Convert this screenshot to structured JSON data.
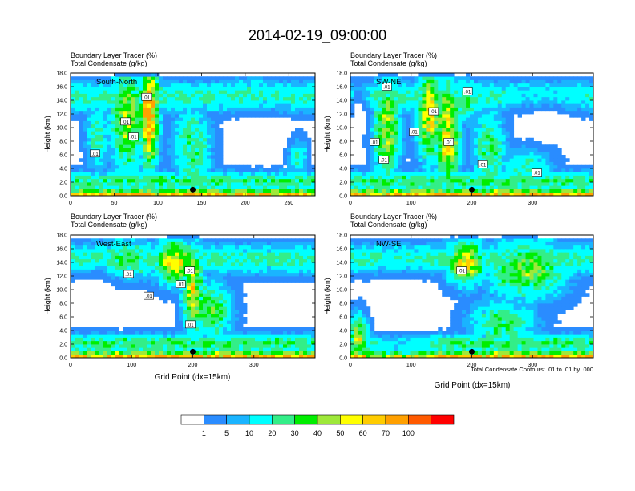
{
  "figure": {
    "title": "2014-02-19_09:00:00",
    "footnote": "Total Condensate Contours: .01 to .01 by .000"
  },
  "colorbar": {
    "labels": [
      "1",
      "5",
      "10",
      "20",
      "30",
      "40",
      "50",
      "60",
      "70",
      "100"
    ],
    "colors": [
      "#ffffff",
      "#2a8cff",
      "#1ab4ff",
      "#00ffff",
      "#33ee88",
      "#00ee00",
      "#9ee83a",
      "#ffff00",
      "#ffcc00",
      "#ffa000",
      "#ff5a00",
      "#ff0000"
    ]
  },
  "chart_data": [
    {
      "type": "heatmap",
      "panel_label": "South-North",
      "title_line1": "Boundary Layer Tracer    (%)",
      "title_line2": "Total Condensate    (g/kg)",
      "ylabel": "Height (km)",
      "xlabel": "",
      "xlim": [
        0,
        280
      ],
      "ylim": [
        0,
        18
      ],
      "xticks": [
        0,
        50,
        100,
        150,
        200,
        250
      ],
      "yticks": [
        0,
        2,
        4,
        6,
        8,
        10,
        12,
        14,
        16,
        18
      ],
      "ytick_labels": [
        "0.0",
        "2.0",
        "4.0",
        "6.0",
        "8.0",
        "10.0",
        "12.0",
        "14.0",
        "16.0",
        "18.0"
      ],
      "marker_x": 140,
      "contour_labels": [
        {
          "text": ".01",
          "x": 87,
          "y": 14.5
        },
        {
          "text": ".01",
          "x": 63,
          "y": 10.9
        },
        {
          "text": ".01",
          "x": 72,
          "y": 8.7
        },
        {
          "text": ".01",
          "x": 28,
          "y": 6.2
        }
      ],
      "cores": [
        {
          "x": 30,
          "z": 9,
          "sx": 12,
          "sz": 5,
          "v": 22
        },
        {
          "x": 65,
          "z": 11,
          "sx": 18,
          "sz": 7,
          "v": 45
        },
        {
          "x": 90,
          "z": 12,
          "sx": 10,
          "sz": 7,
          "v": 75
        },
        {
          "x": 140,
          "z": 7,
          "sx": 20,
          "sz": 6,
          "v": 28
        },
        {
          "x": 205,
          "z": 15,
          "sx": 30,
          "sz": 2,
          "v": 22
        },
        {
          "x": 260,
          "z": 6,
          "sx": 10,
          "sz": 2.5,
          "v": 22
        }
      ],
      "clear_regions": [
        {
          "x": 220,
          "z": 9,
          "sx": 40,
          "sz": 4
        }
      ]
    },
    {
      "type": "heatmap",
      "panel_label": "SW-NE",
      "title_line1": "Boundary Layer Tracer    (%)",
      "title_line2": "Total Condensate    (g/kg)",
      "ylabel": "Height (km)",
      "xlabel": "",
      "xlim": [
        0,
        400
      ],
      "ylim": [
        0,
        18
      ],
      "xticks": [
        0,
        100,
        200,
        300
      ],
      "yticks": [
        0,
        2,
        4,
        6,
        8,
        10,
        12,
        14,
        16,
        18
      ],
      "ytick_labels": [
        "0.0",
        "2.0",
        "4.0",
        "6.0",
        "8.0",
        "10.0",
        "12.0",
        "14.0",
        "16.0",
        "18.0"
      ],
      "marker_x": 200,
      "contour_labels": [
        {
          "text": ".01",
          "x": 60,
          "y": 16.0
        },
        {
          "text": ".01",
          "x": 193,
          "y": 15.3
        },
        {
          "text": ".01",
          "x": 137,
          "y": 12.4
        },
        {
          "text": ".01",
          "x": 105,
          "y": 9.4
        },
        {
          "text": ".01",
          "x": 40,
          "y": 7.9
        },
        {
          "text": ".01",
          "x": 162,
          "y": 7.9
        },
        {
          "text": ".01",
          "x": 55,
          "y": 5.3
        },
        {
          "text": ".01",
          "x": 218,
          "y": 4.6
        },
        {
          "text": ".01",
          "x": 307,
          "y": 3.4
        }
      ],
      "cores": [
        {
          "x": 60,
          "z": 10,
          "sx": 20,
          "sz": 7,
          "v": 45
        },
        {
          "x": 130,
          "z": 12,
          "sx": 20,
          "sz": 6,
          "v": 55
        },
        {
          "x": 160,
          "z": 9,
          "sx": 18,
          "sz": 7,
          "v": 60
        },
        {
          "x": 190,
          "z": 14,
          "sx": 20,
          "sz": 3,
          "v": 28
        },
        {
          "x": 230,
          "z": 7,
          "sx": 25,
          "sz": 6,
          "v": 30
        },
        {
          "x": 290,
          "z": 4,
          "sx": 40,
          "sz": 3,
          "v": 22
        }
      ],
      "clear_regions": [
        {
          "x": 15,
          "z": 13,
          "sx": 20,
          "sz": 4
        },
        {
          "x": 320,
          "z": 11,
          "sx": 70,
          "sz": 4
        }
      ]
    },
    {
      "type": "heatmap",
      "panel_label": "West-East",
      "title_line1": "Boundary Layer Tracer    (%)",
      "title_line2": "Total Condensate    (g/kg)",
      "ylabel": "Height (km)",
      "xlabel": "Grid Point (dx=15km)",
      "xlim": [
        0,
        400
      ],
      "ylim": [
        0,
        18
      ],
      "xticks": [
        0,
        100,
        200,
        300
      ],
      "yticks": [
        0,
        2,
        4,
        6,
        8,
        10,
        12,
        14,
        16,
        18
      ],
      "ytick_labels": [
        "0.0",
        "2.0",
        "4.0",
        "6.0",
        "8.0",
        "10.0",
        "12.0",
        "14.0",
        "16.0",
        "18.0"
      ],
      "marker_x": 200,
      "contour_labels": [
        {
          "text": ".01",
          "x": 195,
          "y": 12.8
        },
        {
          "text": ".01",
          "x": 95,
          "y": 12.3
        },
        {
          "text": ".01",
          "x": 180,
          "y": 10.8
        },
        {
          "text": ".01",
          "x": 128,
          "y": 9.1
        },
        {
          "text": ".01",
          "x": 196,
          "y": 4.9
        }
      ],
      "cores": [
        {
          "x": 90,
          "z": 14.5,
          "sx": 60,
          "sz": 2.5,
          "v": 30
        },
        {
          "x": 170,
          "z": 14,
          "sx": 30,
          "sz": 3,
          "v": 55
        },
        {
          "x": 200,
          "z": 10,
          "sx": 15,
          "sz": 6,
          "v": 55
        },
        {
          "x": 230,
          "z": 7,
          "sx": 30,
          "sz": 4,
          "v": 35
        }
      ],
      "clear_regions": [
        {
          "x": 40,
          "z": 10,
          "sx": 35,
          "sz": 3
        }
      ]
    },
    {
      "type": "heatmap",
      "panel_label": "NW-SE",
      "title_line1": "Boundary Layer Tracer    (%)",
      "title_line2": "Total Condensate    (g/kg)",
      "ylabel": "Height (km)",
      "xlabel": "Grid Point (dx=15km)",
      "xlim": [
        0,
        400
      ],
      "ylim": [
        0,
        18
      ],
      "xticks": [
        0,
        100,
        200,
        300
      ],
      "yticks": [
        0,
        2,
        4,
        6,
        8,
        10,
        12,
        14,
        16,
        18
      ],
      "ytick_labels": [
        "0.0",
        "2.0",
        "4.0",
        "6.0",
        "8.0",
        "10.0",
        "12.0",
        "14.0",
        "16.0",
        "18.0"
      ],
      "marker_x": 200,
      "contour_labels": [
        {
          "text": ".01",
          "x": 183,
          "y": 12.8
        }
      ],
      "cores": [
        {
          "x": 190,
          "z": 14,
          "sx": 30,
          "sz": 3,
          "v": 55
        },
        {
          "x": 290,
          "z": 13,
          "sx": 60,
          "sz": 4,
          "v": 40
        },
        {
          "x": 250,
          "z": 5,
          "sx": 50,
          "sz": 3,
          "v": 30
        },
        {
          "x": 15,
          "z": 3,
          "sx": 15,
          "sz": 3,
          "v": 60
        }
      ],
      "clear_regions": [
        {
          "x": 80,
          "z": 7,
          "sx": 60,
          "sz": 6
        }
      ]
    }
  ]
}
